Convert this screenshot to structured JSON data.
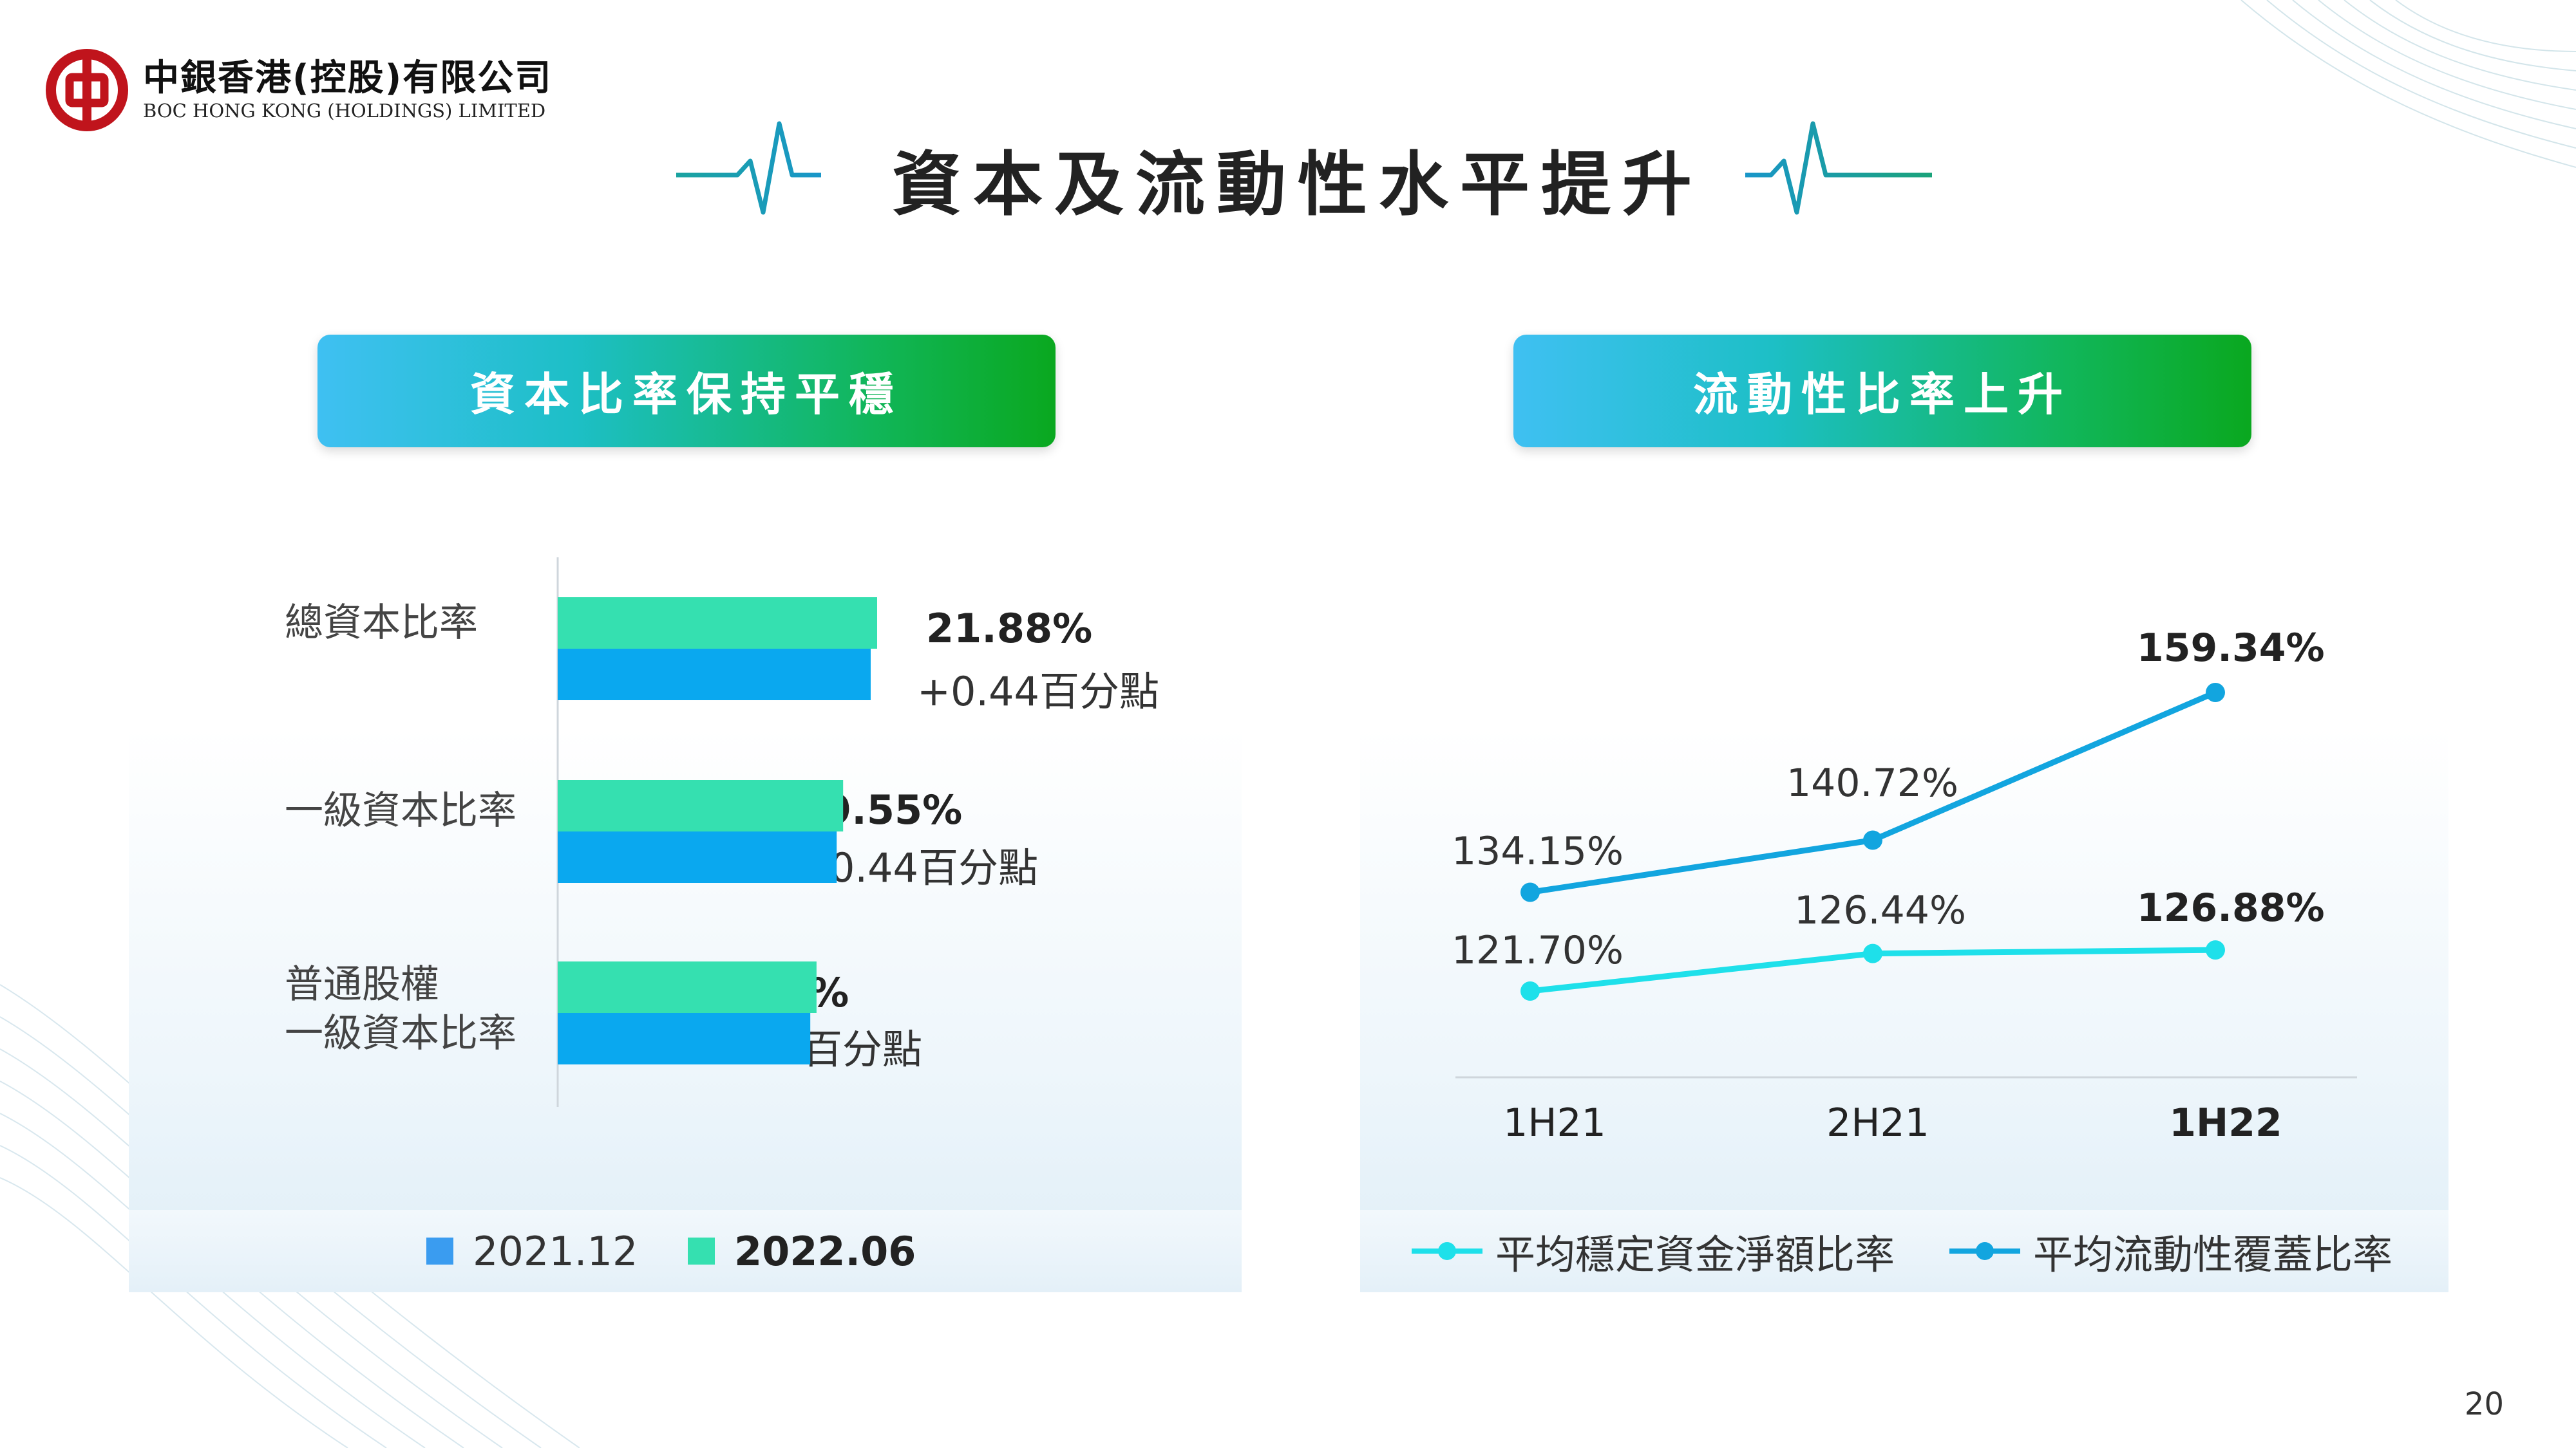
{
  "logo": {
    "name_cn": "中銀香港(控股)有限公司",
    "name_en": "BOC HONG KONG (HOLDINGS) LIMITED",
    "brand_color": "#c0141c"
  },
  "title": "資本及流動性水平提升",
  "left_section": {
    "header": "資本比率保持平穩",
    "legend": [
      {
        "label": "2021.12",
        "color": "#0aa8ef",
        "bold": false
      },
      {
        "label": "2022.06",
        "color": "#35e0b0",
        "bold": true
      }
    ]
  },
  "right_section": {
    "header": "流動性比率上升",
    "legend": [
      {
        "label": "平均穩定資金淨額比率",
        "color": "#1ee0ea"
      },
      {
        "label": "平均流動性覆蓋比率",
        "color": "#12a5df"
      }
    ]
  },
  "chart_data": [
    {
      "type": "bar",
      "orientation": "horizontal",
      "categories": [
        "總資本比率",
        "一級資本比率",
        "普通股權\n一級資本比率"
      ],
      "category_lines": [
        [
          "總資本比率"
        ],
        [
          "一級資本比率"
        ],
        [
          "普通股權",
          "一級資本比率"
        ]
      ],
      "series": [
        {
          "name": "2022.06",
          "values": [
            21.88,
            19.55,
            17.73
          ],
          "color": "#35e0b0"
        },
        {
          "name": "2021.12",
          "values": [
            21.44,
            19.11,
            17.3
          ],
          "color": "#0aa8ef"
        }
      ],
      "value_labels": [
        "21.88%",
        "19.55%",
        "17.73%"
      ],
      "delta_labels": [
        "+0.44百分點",
        "+0.44百分點",
        "+0.43百分點"
      ],
      "legend_position": "bottom"
    },
    {
      "type": "line",
      "categories": [
        "1H21",
        "2H21",
        "1H22"
      ],
      "series": [
        {
          "name": "平均流動性覆蓋比率",
          "values": [
            134.15,
            140.72,
            159.34
          ],
          "labels": [
            "134.15%",
            "140.72%",
            "159.34%"
          ],
          "color": "#12a5df"
        },
        {
          "name": "平均穩定資金淨額比率",
          "values": [
            121.7,
            126.44,
            126.88
          ],
          "labels": [
            "121.70%",
            "126.44%",
            "126.88%"
          ],
          "color": "#1ee0ea"
        }
      ],
      "legend_position": "bottom"
    }
  ],
  "page_number": "20"
}
